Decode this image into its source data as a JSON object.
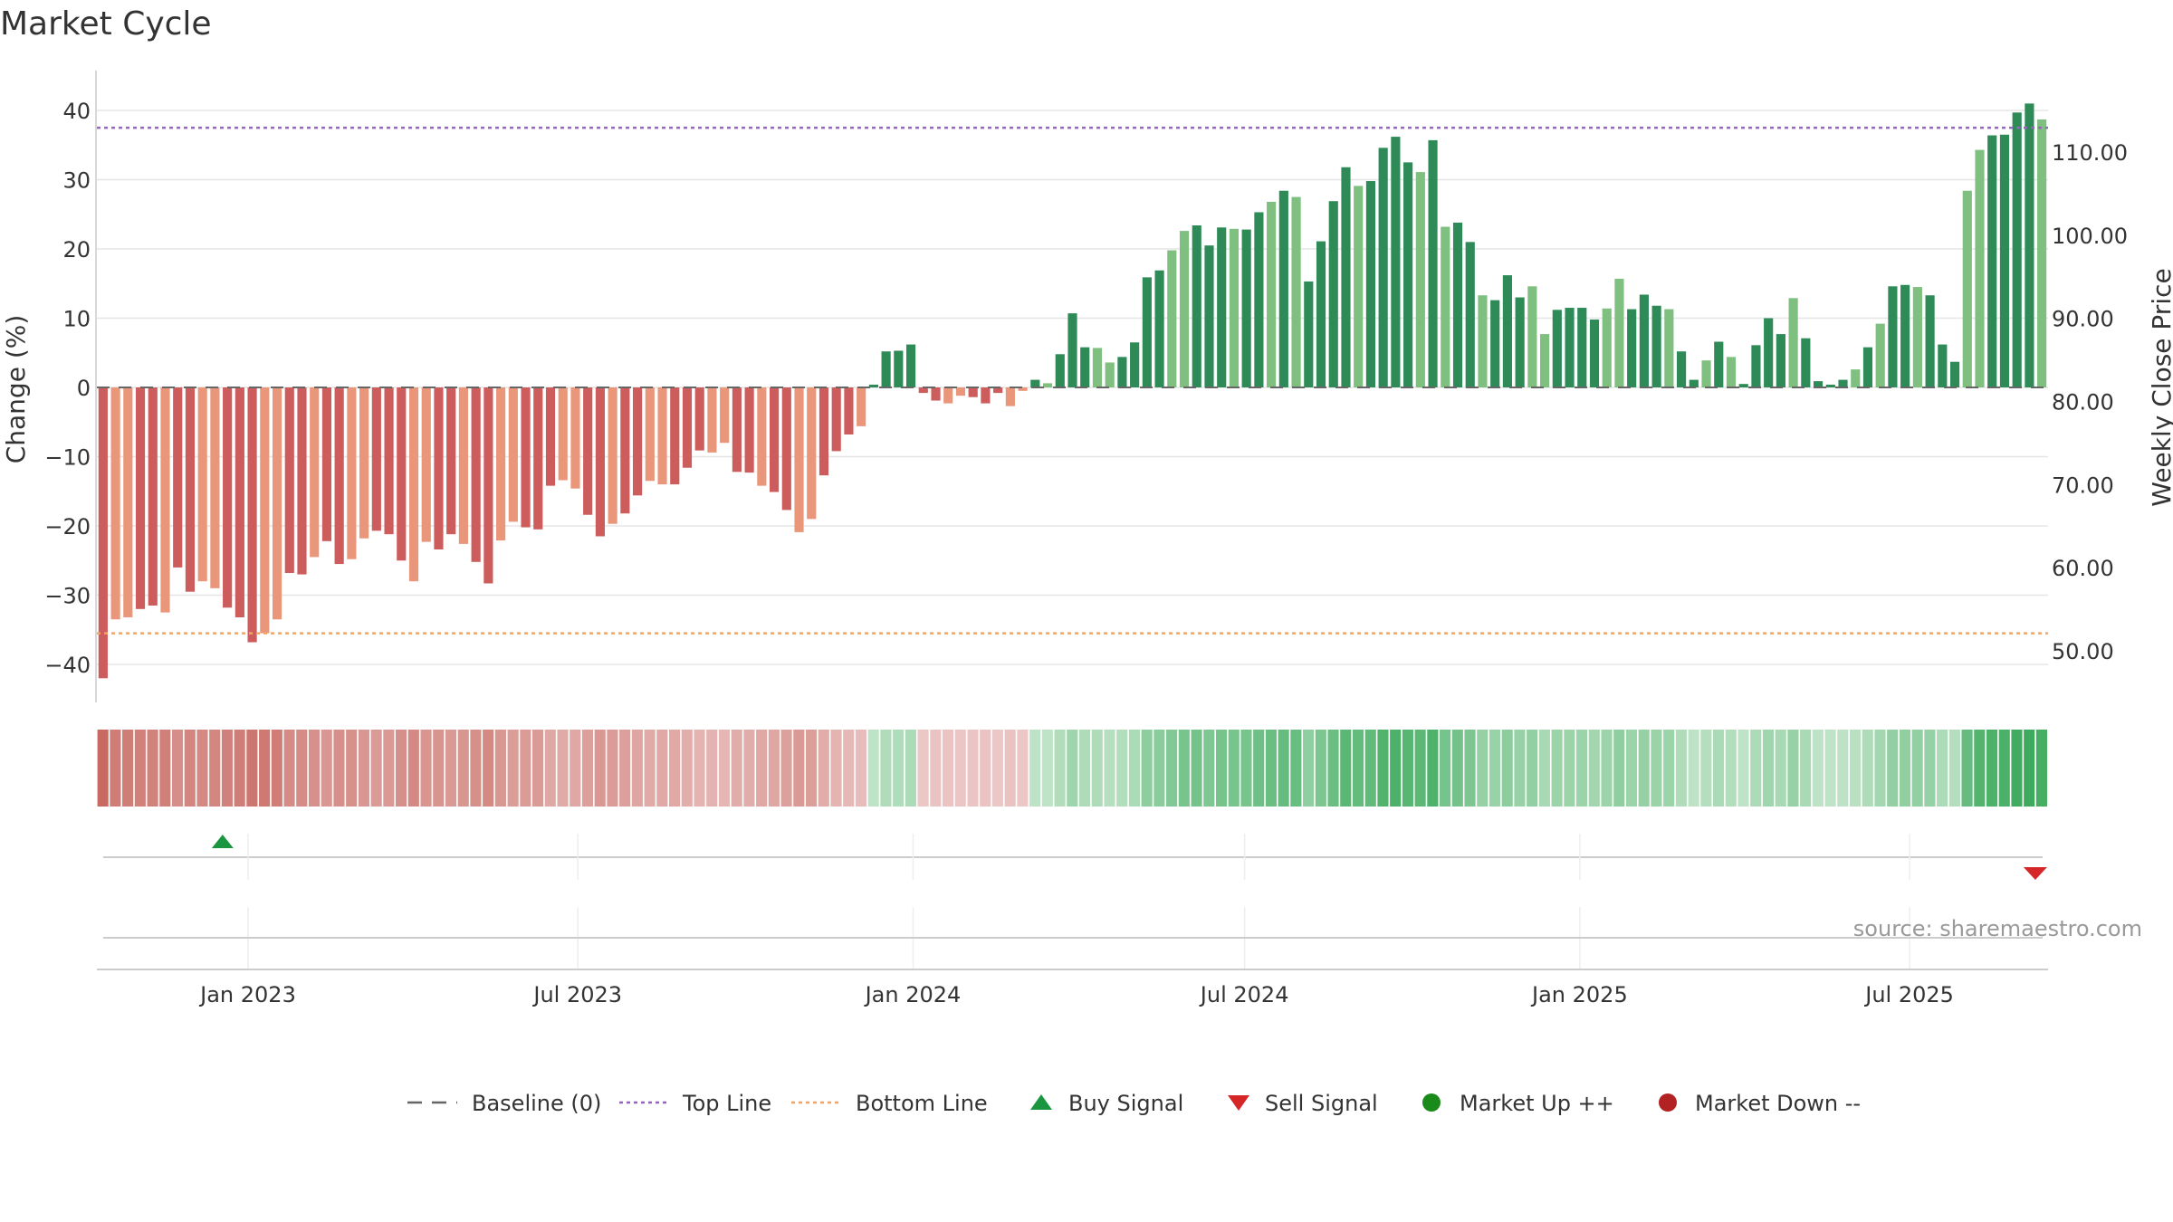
{
  "chart_data": {
    "type": "bar",
    "title": "Market Cycle",
    "ylabel": "Change (%)",
    "y2label": "Weekly Close Price",
    "ylim": [
      -45,
      45
    ],
    "y2lim": [
      45,
      120
    ],
    "yticks": [
      40,
      30,
      20,
      10,
      0,
      -10,
      -20,
      -30,
      -40
    ],
    "yticklabels": [
      "40",
      "30",
      "20",
      "10",
      "0",
      "−10",
      "−20",
      "−30",
      "−40"
    ],
    "y2ticks": [
      110,
      100,
      90,
      80,
      70,
      60,
      50
    ],
    "y2ticklabels": [
      "110.00",
      "100.00",
      "90.00",
      "80.00",
      "70.00",
      "60.00",
      "50.00"
    ],
    "x_start": "2022-10-10",
    "x_end": "2025-09-15",
    "xticks": [
      "2023-01-01",
      "2023-07-01",
      "2024-01-01",
      "2024-07-01",
      "2025-01-01",
      "2025-07-01"
    ],
    "xticklabels": [
      "Jan 2023",
      "Jul 2023",
      "Jan 2024",
      "Jul 2024",
      "Jan 2025",
      "Jul 2025"
    ],
    "top_line": 37.5,
    "bottom_line": -35.5,
    "values": [
      -42,
      -33.5,
      -33.2,
      -32,
      -31.5,
      -32.5,
      -26,
      -29.5,
      -28,
      -29,
      -31.8,
      -33.2,
      -36.8,
      -35.5,
      -33.5,
      -26.8,
      -27,
      -24.5,
      -22.2,
      -25.5,
      -24.8,
      -21.8,
      -20.7,
      -21.2,
      -25,
      -28,
      -22.3,
      -23.4,
      -21.2,
      -22.6,
      -25.2,
      -28.3,
      -22.1,
      -19.4,
      -20.2,
      -20.5,
      -14.2,
      -13.4,
      -14.6,
      -18.4,
      -21.5,
      -19.7,
      -18.2,
      -15.6,
      -13.5,
      -14,
      -14,
      -11.6,
      -9.1,
      -9.4,
      -8,
      -12.2,
      -12.3,
      -14.2,
      -15.1,
      -17.7,
      -20.9,
      -19,
      -12.7,
      -9.2,
      -6.8,
      -5.6,
      0.4,
      5.2,
      5.3,
      6.2,
      -0.8,
      -1.9,
      -2.3,
      -1.2,
      -1.4,
      -2.3,
      -0.8,
      -2.7,
      -0.5,
      1.1,
      0.6,
      4.8,
      10.7,
      5.8,
      5.7,
      3.6,
      4.4,
      6.5,
      15.9,
      16.9,
      19.8,
      22.6,
      23.4,
      20.5,
      23.1,
      22.9,
      22.8,
      25.3,
      26.8,
      28.4,
      27.5,
      15.3,
      21.1,
      26.9,
      31.8,
      29.1,
      29.8,
      34.6,
      36.2,
      32.5,
      31.1,
      35.7,
      23.2,
      23.8,
      21,
      13.3,
      12.6,
      16.2,
      13,
      14.6,
      7.7,
      11.2,
      11.5,
      11.5,
      9.8,
      11.4,
      15.7,
      11.3,
      13.4,
      11.8,
      11.3,
      5.2,
      1.1,
      3.9,
      6.6,
      4.4,
      0.5,
      6.1,
      10,
      7.7,
      12.9,
      7.1,
      0.9,
      0.4,
      1.1,
      2.6,
      5.8,
      9.2,
      14.6,
      14.8,
      14.5,
      13.3,
      6.2,
      3.7,
      28.4,
      34.3,
      36.4,
      36.5,
      39.7,
      41,
      38.7
    ],
    "signals": [
      {
        "type": "buy",
        "date": "2022-12-18"
      },
      {
        "type": "sell",
        "date": "2025-09-08"
      }
    ],
    "source": "source: sharemaestro.com",
    "legend": [
      {
        "label": "Baseline (0)",
        "style": "dashed",
        "color": "#666666"
      },
      {
        "label": "Top Line",
        "style": "dotted",
        "color": "#9467bd"
      },
      {
        "label": "Bottom Line",
        "style": "dotted",
        "color": "#f4a460"
      },
      {
        "label": "Buy Signal",
        "style": "triangle-up",
        "color": "#1a9641"
      },
      {
        "label": "Sell Signal",
        "style": "triangle-down",
        "color": "#d62728"
      },
      {
        "label": "Market Up ++",
        "style": "circle",
        "color": "#1a8a1a"
      },
      {
        "label": "Market Down --",
        "style": "circle",
        "color": "#b22222"
      }
    ],
    "legend_position": "bottom",
    "grid": true,
    "colors": {
      "up_dark": "#2e8b57",
      "up_light": "#7fbf7f",
      "down_dark": "#cd5c5c",
      "down_light": "#e9967a"
    }
  }
}
